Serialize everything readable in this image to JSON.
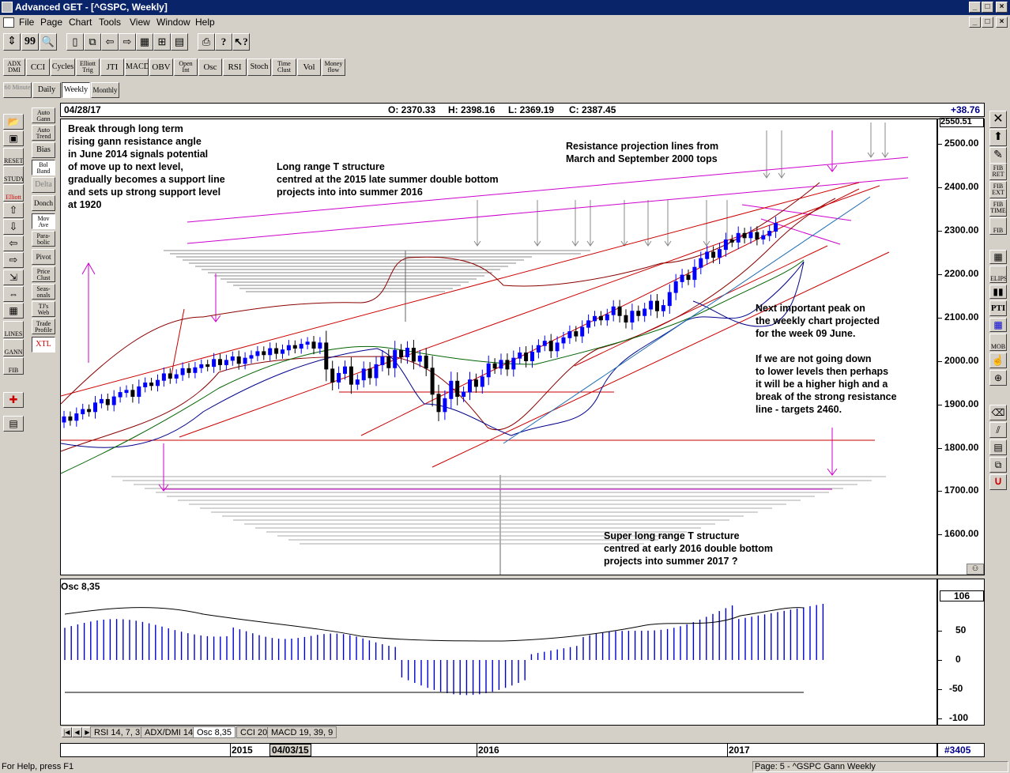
{
  "window": {
    "title": "Advanced GET - [^GSPC, Weekly]"
  },
  "menu": [
    "File",
    "Page",
    "Chart",
    "Tools",
    "View",
    "Window",
    "Help"
  ],
  "toolbar2": [
    {
      "name": "adx-dmi",
      "label": "ADX DMI"
    },
    {
      "name": "cci",
      "label": "CCI"
    },
    {
      "name": "cycles",
      "label": "Cycles"
    },
    {
      "name": "elliott-trig",
      "label": "Elliott Trig"
    },
    {
      "name": "jti",
      "label": "JTI"
    },
    {
      "name": "macd",
      "label": "MACD"
    },
    {
      "name": "obv",
      "label": "OBV"
    },
    {
      "name": "open-int",
      "label": "Open Int"
    },
    {
      "name": "osc",
      "label": "Osc"
    },
    {
      "name": "rsi",
      "label": "RSI"
    },
    {
      "name": "stoch",
      "label": "Stoch"
    },
    {
      "name": "time-clust",
      "label": "Time Clust"
    },
    {
      "name": "vol",
      "label": "Vol"
    },
    {
      "name": "money-flow",
      "label": "Money flow"
    }
  ],
  "periods": [
    "60 Minute",
    "Daily",
    "Weekly",
    "Monthly"
  ],
  "side_studies": [
    "Auto Gann",
    "Auto Trend",
    "Bias",
    "Bol Band",
    "Delta",
    "Donch",
    "Mov Ave",
    "Para-bolic",
    "Pivot",
    "Price Clust",
    "Seas-onals",
    "TJ's Web",
    "Trade Profile",
    "XTL"
  ],
  "left_tools": [
    "Elliott",
    "LINES",
    "GANN",
    "FIB",
    "RESET",
    "STUDY"
  ],
  "right_tools": [
    "FIB RET",
    "FIB EXT",
    "FIB TIME",
    "FIB",
    "ELIPS",
    "PTI",
    "MOB"
  ],
  "header": {
    "date": "04/28/17",
    "open": "O: 2370.33",
    "high": "H: 2398.16",
    "low": "L: 2369.19",
    "close": "C: 2387.45",
    "change": "+38.76"
  },
  "annotations": {
    "gann": "Break through long term\nrising gann resistance angle\nin June 2014 signals potential\nof move up to next level,\ngradually becomes a support line\nand sets up strong support level\nat 1920",
    "t_structure": "Long range T structure\ncentred at the 2015 late summer double bottom\nprojects into into summer 2016",
    "resistance": "Resistance projection lines from\nMarch and September 2000 tops",
    "next_peak": "Next important peak on\nthe weekly chart projected\nfor the week 09 June.",
    "if_not": "If we are not going down\nto lower levels then perhaps\nit will be a higher high and a\nbreak of the strong resistance\nline - targets 2460.",
    "super_t": "Super long range T structure\ncentred at early 2016 double bottom\nprojects into summer 2017 ?"
  },
  "price_axis": {
    "top_label": "2550.51",
    "labels": [
      "2500.00",
      "2400.00",
      "2300.00",
      "2200.00",
      "2100.00",
      "2000.00",
      "1900.00",
      "1800.00",
      "1700.00",
      "1600.00"
    ]
  },
  "osc": {
    "title": "Osc 8,35",
    "value": "106",
    "labels": [
      "50",
      "0",
      "-50",
      "-100"
    ]
  },
  "tabs": [
    "RSI 14, 7, 3",
    "ADX/DMI 14",
    "Osc 8,35",
    "CCI 20",
    "MACD 19, 39, 9"
  ],
  "time_axis": {
    "labels": [
      "2015",
      "04/03/15",
      "2016",
      "2017"
    ],
    "count": "#3405"
  },
  "status": {
    "help": "For Help, press F1",
    "page": "Page: 5 - ^GSPC Gann Weekly"
  }
}
